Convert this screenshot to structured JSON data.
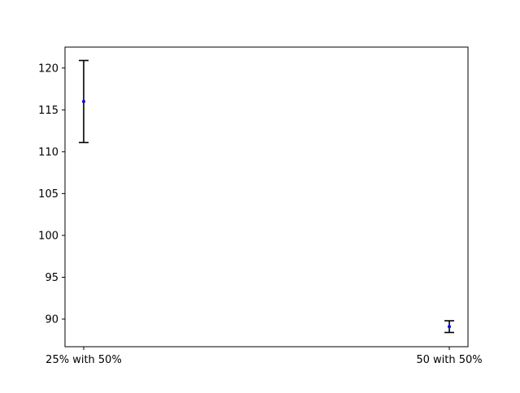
{
  "chart_data": {
    "type": "scatter",
    "categories": [
      "25% with 50%",
      "50 with 50%"
    ],
    "values": [
      116.0,
      89.1
    ],
    "error_bars": [
      {
        "lower": 111.1,
        "upper": 120.9
      },
      {
        "lower": 88.4,
        "upper": 89.8
      }
    ],
    "yticks": [
      90,
      95,
      100,
      105,
      110,
      115,
      120
    ],
    "ylim": [
      86.7,
      122.5
    ],
    "title": "",
    "xlabel": "",
    "ylabel": "",
    "grid": false,
    "colors": {
      "point": "#0000ff",
      "errorbar": "#000000",
      "axis": "#000000"
    }
  }
}
